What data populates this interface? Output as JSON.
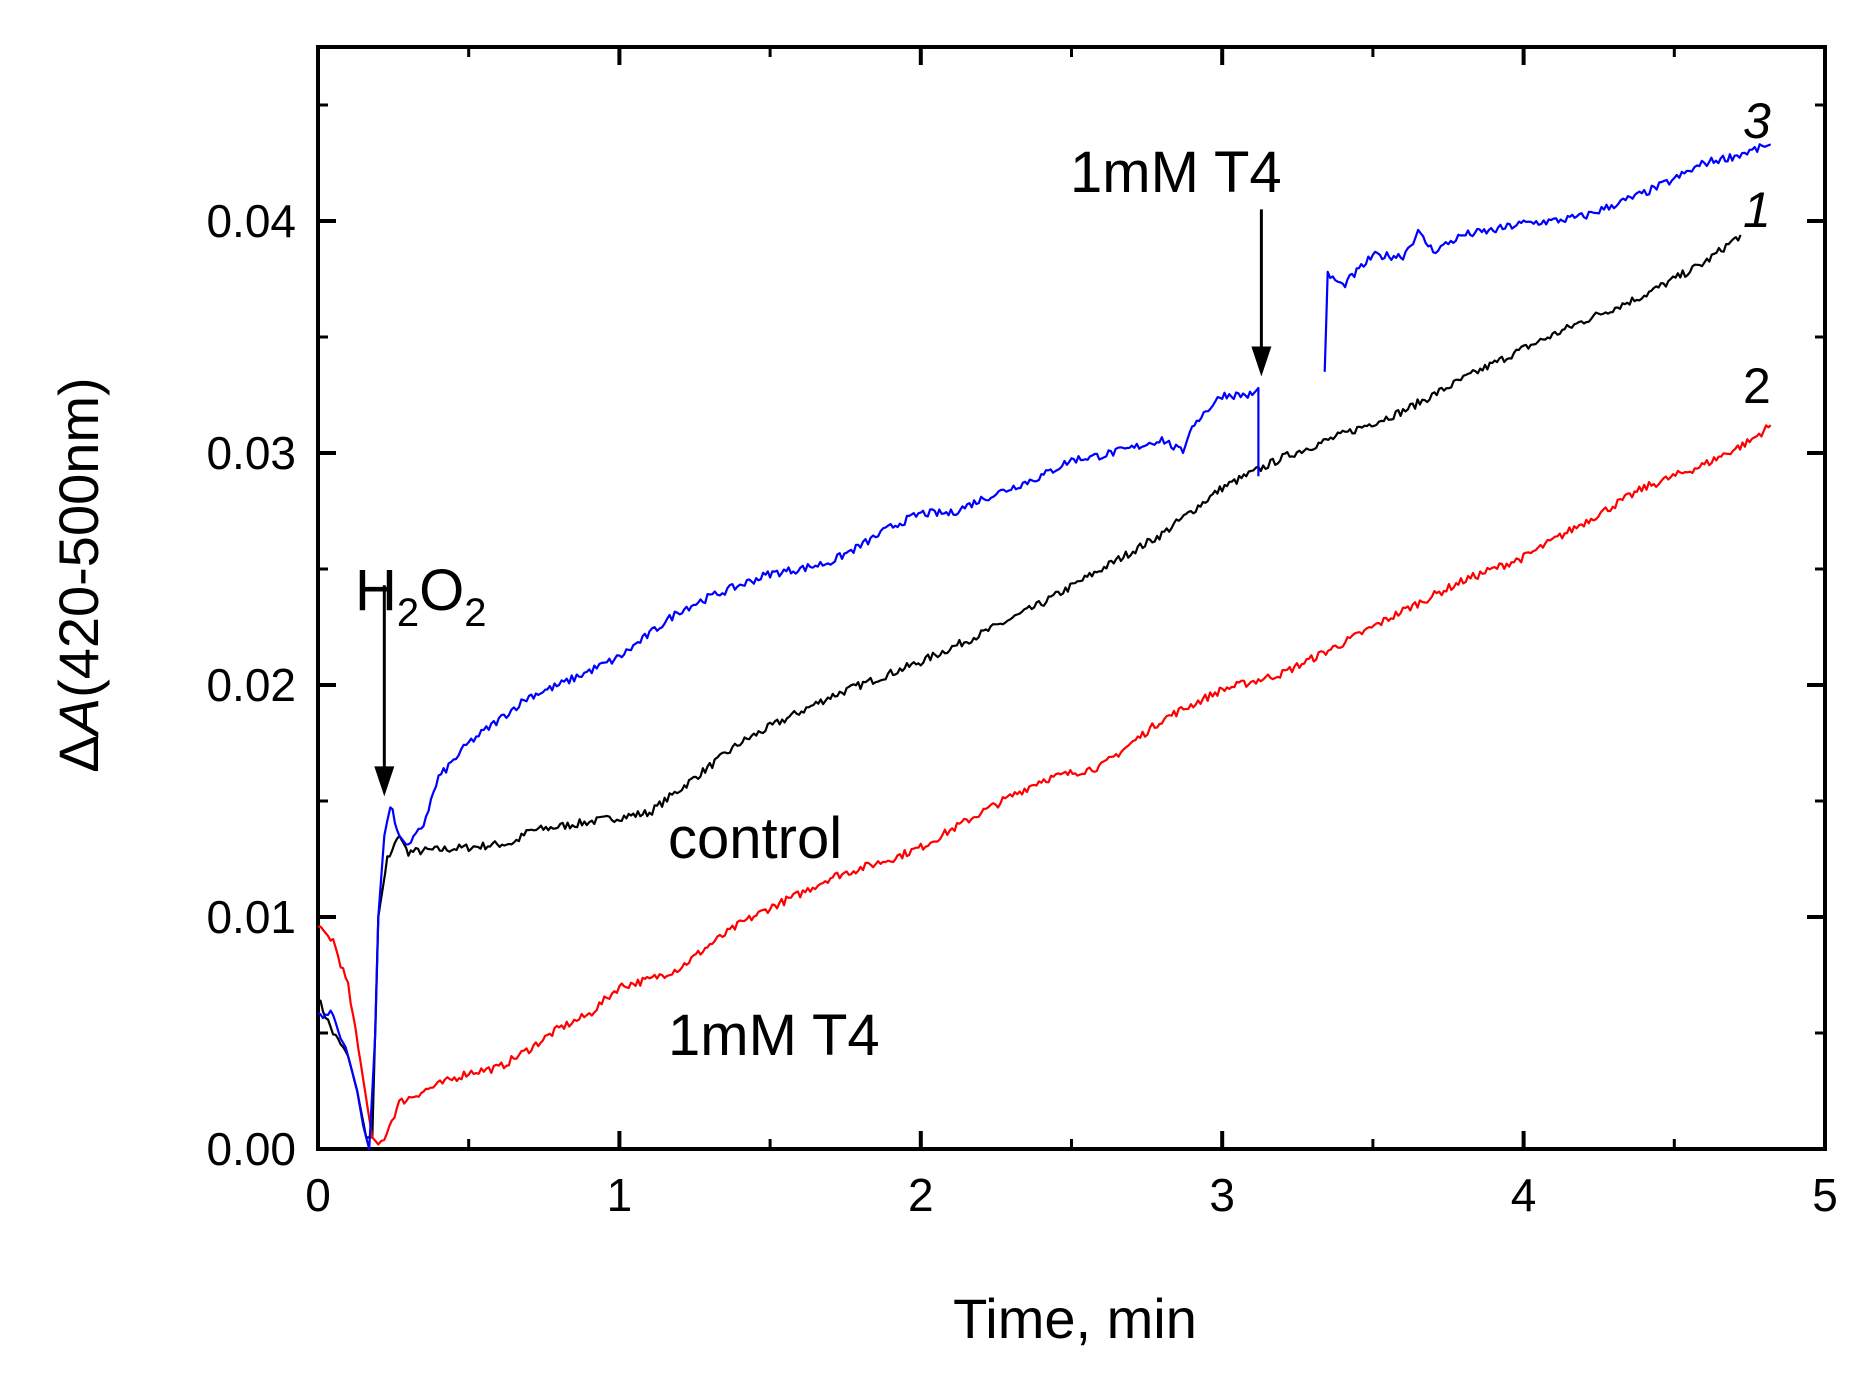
{
  "chart_data": {
    "type": "line",
    "title": "",
    "xlabel": "Time, min",
    "ylabel_delta": "Δ",
    "ylabel_var": "A",
    "ylabel_rest": "(420-500nm)",
    "xlim": [
      0,
      5
    ],
    "ylim": [
      0,
      0.0475
    ],
    "grid": false,
    "x_ticks": [
      0,
      1,
      2,
      3,
      4,
      5
    ],
    "x_tick_labels": [
      "0",
      "1",
      "2",
      "3",
      "4",
      "5"
    ],
    "y_ticks": [
      0,
      0.01,
      0.02,
      0.03,
      0.04
    ],
    "y_tick_labels": [
      "0.00",
      "0.01",
      "0.02",
      "0.03",
      "0.04"
    ],
    "series": [
      {
        "name": "1",
        "label": "control",
        "color": "#000000",
        "points": [
          [
            0,
            0.0065
          ],
          [
            0.05,
            0.005
          ],
          [
            0.1,
            0.004
          ],
          [
            0.13,
            0.0025
          ],
          [
            0.16,
            0.0005
          ],
          [
            0.18,
            0.0005
          ],
          [
            0.2,
            0.01
          ],
          [
            0.23,
            0.0125
          ],
          [
            0.27,
            0.0135
          ],
          [
            0.3,
            0.0128
          ],
          [
            0.5,
            0.013
          ],
          [
            0.65,
            0.0132
          ],
          [
            0.7,
            0.0137
          ],
          [
            0.9,
            0.0141
          ],
          [
            1.0,
            0.0143
          ],
          [
            1.1,
            0.0145
          ],
          [
            1.2,
            0.0155
          ],
          [
            1.3,
            0.0165
          ],
          [
            1.4,
            0.0175
          ],
          [
            1.5,
            0.0182
          ],
          [
            1.7,
            0.0195
          ],
          [
            1.8,
            0.02
          ],
          [
            1.9,
            0.0205
          ],
          [
            2.0,
            0.021
          ],
          [
            2.2,
            0.0222
          ],
          [
            2.4,
            0.0235
          ],
          [
            2.6,
            0.025
          ],
          [
            2.8,
            0.0265
          ],
          [
            3.0,
            0.0285
          ],
          [
            3.2,
            0.0298
          ],
          [
            3.4,
            0.0308
          ],
          [
            3.6,
            0.0318
          ],
          [
            3.8,
            0.0332
          ],
          [
            4.0,
            0.0345
          ],
          [
            4.2,
            0.0357
          ],
          [
            4.4,
            0.0368
          ],
          [
            4.6,
            0.0382
          ],
          [
            4.72,
            0.0394
          ]
        ]
      },
      {
        "name": "2",
        "label": "1mM T4",
        "color": "#ff0000",
        "points": [
          [
            0,
            0.0095
          ],
          [
            0.05,
            0.009
          ],
          [
            0.1,
            0.007
          ],
          [
            0.15,
            0.003
          ],
          [
            0.18,
            0.0005
          ],
          [
            0.2,
            0.0002
          ],
          [
            0.22,
            0.0005
          ],
          [
            0.27,
            0.002
          ],
          [
            0.35,
            0.0025
          ],
          [
            0.5,
            0.0033
          ],
          [
            0.6,
            0.0035
          ],
          [
            0.7,
            0.0043
          ],
          [
            0.8,
            0.0052
          ],
          [
            0.9,
            0.0058
          ],
          [
            1.0,
            0.007
          ],
          [
            1.1,
            0.0073
          ],
          [
            1.2,
            0.0078
          ],
          [
            1.3,
            0.0088
          ],
          [
            1.4,
            0.0097
          ],
          [
            1.5,
            0.0104
          ],
          [
            1.6,
            0.011
          ],
          [
            1.7,
            0.0117
          ],
          [
            1.8,
            0.0121
          ],
          [
            1.9,
            0.0125
          ],
          [
            2.0,
            0.013
          ],
          [
            2.2,
            0.0145
          ],
          [
            2.4,
            0.0159
          ],
          [
            2.6,
            0.0165
          ],
          [
            2.8,
            0.0185
          ],
          [
            3.0,
            0.0198
          ],
          [
            3.2,
            0.0205
          ],
          [
            3.4,
            0.0218
          ],
          [
            3.6,
            0.0232
          ],
          [
            3.8,
            0.0245
          ],
          [
            4.0,
            0.0255
          ],
          [
            4.2,
            0.027
          ],
          [
            4.4,
            0.0285
          ],
          [
            4.6,
            0.0295
          ],
          [
            4.75,
            0.0305
          ],
          [
            4.82,
            0.0312
          ]
        ]
      },
      {
        "name": "3",
        "label": "1mM T4",
        "color": "#0000ff",
        "segments": [
          [
            [
              0,
              0.0058
            ],
            [
              0.05,
              0.0058
            ],
            [
              0.1,
              0.004
            ],
            [
              0.13,
              0.0025
            ],
            [
              0.15,
              0.001
            ],
            [
              0.17,
              0.0
            ],
            [
              0.19,
              0.005
            ],
            [
              0.2,
              0.01
            ],
            [
              0.22,
              0.0135
            ],
            [
              0.24,
              0.0148
            ],
            [
              0.27,
              0.0135
            ],
            [
              0.3,
              0.013
            ],
            [
              0.35,
              0.014
            ],
            [
              0.4,
              0.016
            ],
            [
              0.5,
              0.0175
            ],
            [
              0.6,
              0.0185
            ],
            [
              0.7,
              0.0195
            ],
            [
              0.8,
              0.02
            ],
            [
              0.9,
              0.0206
            ],
            [
              1.0,
              0.0212
            ],
            [
              1.1,
              0.0222
            ],
            [
              1.2,
              0.0232
            ],
            [
              1.3,
              0.0238
            ],
            [
              1.4,
              0.0243
            ],
            [
              1.5,
              0.0248
            ],
            [
              1.6,
              0.025
            ],
            [
              1.7,
              0.0253
            ],
            [
              1.8,
              0.026
            ],
            [
              1.9,
              0.0268
            ],
            [
              2.0,
              0.0274
            ],
            [
              2.1,
              0.0274
            ],
            [
              2.2,
              0.028
            ],
            [
              2.3,
              0.0285
            ],
            [
              2.4,
              0.029
            ],
            [
              2.5,
              0.0297
            ],
            [
              2.6,
              0.0299
            ],
            [
              2.7,
              0.0302
            ],
            [
              2.8,
              0.0306
            ],
            [
              2.87,
              0.03
            ],
            [
              2.9,
              0.0312
            ],
            [
              3.0,
              0.0325
            ],
            [
              3.1,
              0.0325
            ],
            [
              3.12,
              0.0328
            ],
            [
              3.12,
              0.029
            ]
          ],
          [
            [
              3.34,
              0.0335
            ],
            [
              3.35,
              0.0377
            ],
            [
              3.4,
              0.0372
            ],
            [
              3.5,
              0.0385
            ],
            [
              3.6,
              0.0385
            ],
            [
              3.65,
              0.0395
            ],
            [
              3.7,
              0.0387
            ],
            [
              3.8,
              0.0394
            ],
            [
              3.9,
              0.0396
            ],
            [
              4.0,
              0.0399
            ],
            [
              4.1,
              0.04
            ],
            [
              4.2,
              0.0402
            ],
            [
              4.3,
              0.0407
            ],
            [
              4.4,
              0.0412
            ],
            [
              4.5,
              0.0418
            ],
            [
              4.6,
              0.0425
            ],
            [
              4.7,
              0.0428
            ],
            [
              4.8,
              0.0432
            ],
            [
              4.82,
              0.0433
            ]
          ]
        ]
      }
    ],
    "annotations": [
      {
        "id": "h2o2",
        "base": "H",
        "sub1": "2",
        "mid": "O",
        "sub2": "2",
        "arrow_x": 0.22,
        "arrow_y_top": 0.0243,
        "arrow_y_bottom": 0.0152
      },
      {
        "id": "t4-top",
        "text": "1mM T4",
        "arrow_x": 3.13,
        "arrow_y_top": 0.0405,
        "arrow_y_bottom": 0.0333
      },
      {
        "id": "control",
        "text": "control"
      },
      {
        "id": "t4-bottom",
        "text": "1mM T4"
      }
    ],
    "curve_labels": {
      "c1": "1",
      "c2": "2",
      "c3": "3"
    }
  }
}
